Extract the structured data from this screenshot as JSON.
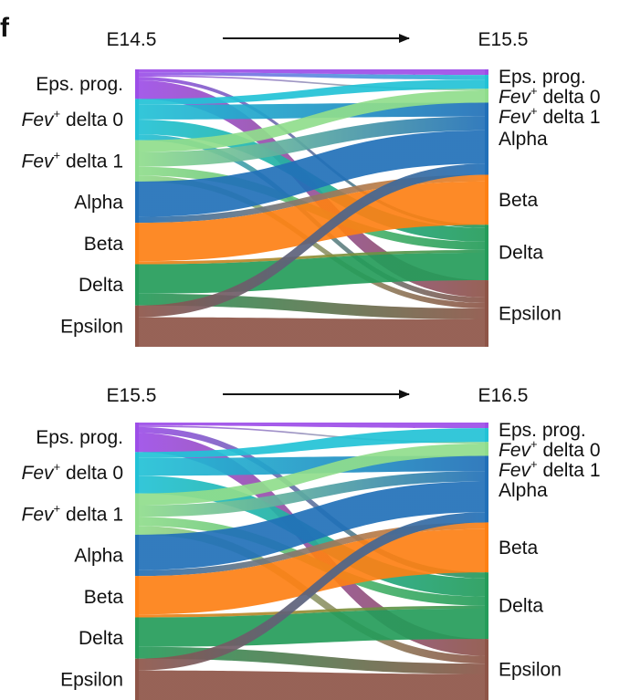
{
  "panel_letter": "f",
  "categories": [
    {
      "key": "eps",
      "label": "Eps. prog.",
      "italic": "",
      "sup": "",
      "rest": "",
      "color": "#9d4ee8"
    },
    {
      "key": "fev0",
      "label": "",
      "italic": "Fev",
      "sup": "+",
      "rest": " delta 0",
      "color": "#22c2d6"
    },
    {
      "key": "fev1",
      "label": "",
      "italic": "Fev",
      "sup": "+",
      "rest": " delta 1",
      "color": "#90dd8c"
    },
    {
      "key": "alpha",
      "label": "Alpha",
      "italic": "",
      "sup": "",
      "rest": "",
      "color": "#2170b8"
    },
    {
      "key": "beta",
      "label": "Beta",
      "italic": "",
      "sup": "",
      "rest": "",
      "color": "#fd8014"
    },
    {
      "key": "delta",
      "label": "Delta",
      "italic": "",
      "sup": "",
      "rest": "",
      "color": "#259c5a"
    },
    {
      "key": "epsilon",
      "label": "Epsilon",
      "italic": "",
      "sup": "",
      "rest": "",
      "color": "#8e5548"
    }
  ],
  "panels": [
    {
      "from": "E14.5",
      "to": "E15.5",
      "left_sizes": [
        0.1,
        0.14,
        0.14,
        0.14,
        0.14,
        0.14,
        0.14
      ],
      "right_sizes": [
        0.02,
        0.05,
        0.05,
        0.26,
        0.18,
        0.2,
        0.24
      ],
      "flows": [
        [
          "eps",
          "eps",
          0.01
        ],
        [
          "eps",
          "fev0",
          0.01
        ],
        [
          "eps",
          "fev1",
          0.005
        ],
        [
          "eps",
          "delta",
          0.012
        ],
        [
          "eps",
          "epsilon",
          0.063
        ],
        [
          "fev0",
          "fev0",
          0.02
        ],
        [
          "fev0",
          "alpha",
          0.05
        ],
        [
          "fev0",
          "delta",
          0.05
        ],
        [
          "fev0",
          "epsilon",
          0.02
        ],
        [
          "fev1",
          "fev1",
          0.04
        ],
        [
          "fev1",
          "alpha",
          0.05
        ],
        [
          "fev1",
          "delta",
          0.03
        ],
        [
          "fev1",
          "epsilon",
          0.02
        ],
        [
          "alpha",
          "alpha",
          0.12
        ],
        [
          "alpha",
          "beta",
          0.02
        ],
        [
          "beta",
          "beta",
          0.13
        ],
        [
          "beta",
          "delta",
          0.01
        ],
        [
          "delta",
          "delta",
          0.1
        ],
        [
          "delta",
          "epsilon",
          0.04
        ],
        [
          "epsilon",
          "alpha",
          0.04
        ],
        [
          "epsilon",
          "epsilon",
          0.1
        ]
      ]
    },
    {
      "from": "E15.5",
      "to": "E16.5",
      "left_sizes": [
        0.1,
        0.14,
        0.14,
        0.14,
        0.14,
        0.14,
        0.14
      ],
      "right_sizes": [
        0.02,
        0.05,
        0.05,
        0.24,
        0.18,
        0.24,
        0.22
      ],
      "flows": [
        [
          "eps",
          "eps",
          0.01
        ],
        [
          "eps",
          "fev1",
          0.005
        ],
        [
          "eps",
          "delta",
          0.02
        ],
        [
          "eps",
          "epsilon",
          0.065
        ],
        [
          "fev0",
          "fev0",
          0.02
        ],
        [
          "fev0",
          "alpha",
          0.06
        ],
        [
          "fev0",
          "delta",
          0.06
        ],
        [
          "fev1",
          "fev1",
          0.04
        ],
        [
          "fev1",
          "alpha",
          0.04
        ],
        [
          "fev1",
          "delta",
          0.03
        ],
        [
          "fev1",
          "epsilon",
          0.03
        ],
        [
          "alpha",
          "alpha",
          0.12
        ],
        [
          "alpha",
          "beta",
          0.02
        ],
        [
          "beta",
          "beta",
          0.13
        ],
        [
          "beta",
          "delta",
          0.01
        ],
        [
          "delta",
          "delta",
          0.1
        ],
        [
          "delta",
          "epsilon",
          0.04
        ],
        [
          "epsilon",
          "alpha",
          0.04
        ],
        [
          "epsilon",
          "epsilon",
          0.1
        ]
      ]
    }
  ]
}
